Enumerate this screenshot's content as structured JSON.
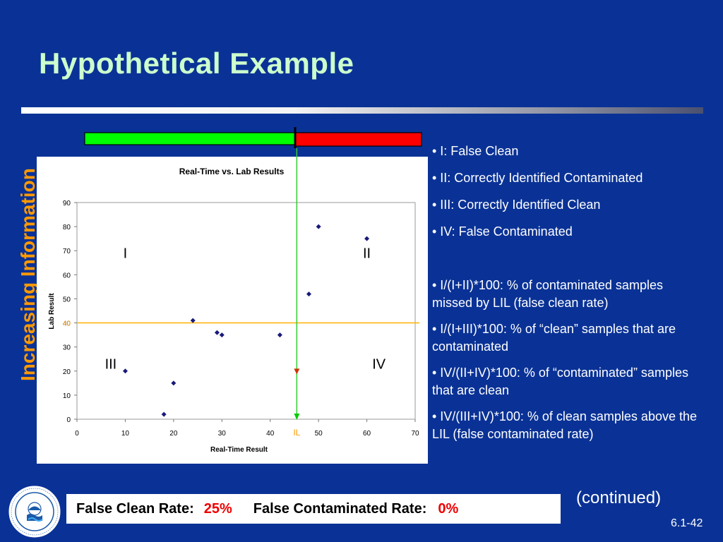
{
  "slide": {
    "title": "Hypothetical Example",
    "vertical_label": "Increasing Information",
    "continued": "(continued)",
    "slide_number": "6.1-42",
    "logo_text": "UNITED STATES ENVIRONMENTAL PROTECTION AGENCY"
  },
  "bullets": [
    "• I: False Clean",
    "• II: Correctly Identified Contaminated",
    "• III: Correctly Identified Clean",
    "• IV: False Contaminated",
    "• I/(I+II)*100: % of contaminated samples missed by LIL (false clean rate)",
    "• I/(I+III)*100: % of “clean” samples that are contaminated",
    "• IV/(II+IV)*100: % of “contaminated” samples that are clean",
    "• IV/(III+IV)*100: % of clean samples above the LIL (false contaminated rate)"
  ],
  "rates": {
    "false_clean_label": "False Clean Rate:",
    "false_clean_value": "25%",
    "false_contaminated_label": "False Contaminated Rate:",
    "false_contaminated_value": "0%"
  },
  "colors": {
    "background": "#0a3296",
    "title": "#ccffcc",
    "accent_orange": "#ff9900",
    "bar_green": "#00ff00",
    "bar_red": "#ff0000",
    "marker": "#1a1a7a",
    "threshold_line": "#ffb000",
    "divider_line": "#33cc33"
  },
  "chart_data": {
    "type": "scatter",
    "title": "Real-Time vs. Lab Results",
    "xlabel": "Real-Time Result",
    "ylabel": "Lab Result",
    "xlim": [
      0,
      70
    ],
    "ylim": [
      0,
      90
    ],
    "xticks": [
      0,
      10,
      20,
      30,
      40,
      50,
      60,
      70
    ],
    "yticks": [
      0,
      10,
      20,
      30,
      40,
      50,
      60,
      70,
      80,
      90
    ],
    "x": [
      10,
      18,
      20,
      24,
      29,
      30,
      42,
      48,
      50,
      60
    ],
    "y": [
      20,
      2,
      15,
      41,
      36,
      35,
      35,
      52,
      80,
      75
    ],
    "threshold_y": 40,
    "threshold_y_label": "40",
    "il_x": 45.5,
    "il_label": "IL",
    "quadrants": [
      "I",
      "II",
      "III",
      "IV"
    ]
  }
}
